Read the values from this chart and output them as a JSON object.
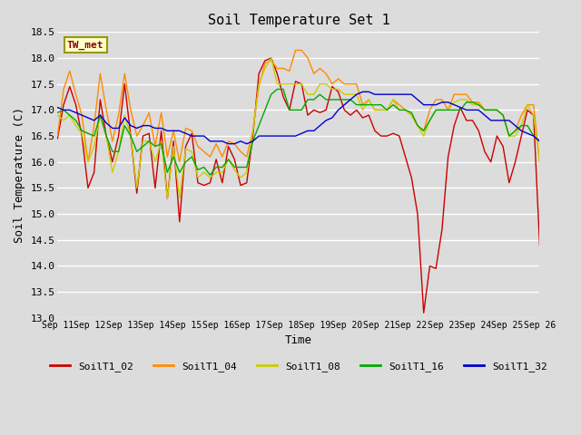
{
  "title": "Soil Temperature Set 1",
  "xlabel": "Time",
  "ylabel": "Soil Temperature (C)",
  "ylim": [
    13.0,
    18.5
  ],
  "annotation": "TW_met",
  "annotation_color": "#8B0000",
  "annotation_bg": "#FFFFCC",
  "plot_bg": "#DCDCDC",
  "grid_color": "white",
  "series_colors": {
    "SoilT1_02": "#CC0000",
    "SoilT1_04": "#FF8C00",
    "SoilT1_08": "#CCCC00",
    "SoilT1_16": "#00AA00",
    "SoilT1_32": "#0000CC"
  },
  "x_start": 11,
  "x_end": 26,
  "x_ticks": [
    11,
    12,
    13,
    14,
    15,
    16,
    17,
    18,
    19,
    20,
    21,
    22,
    23,
    24,
    25,
    26
  ],
  "x_tick_labels": [
    "Sep 11",
    "Sep 12",
    "Sep 13",
    "Sep 14",
    "Sep 15",
    "Sep 16",
    "Sep 17",
    "Sep 18",
    "Sep 19",
    "Sep 20",
    "Sep 21",
    "Sep 22",
    "Sep 23",
    "Sep 24",
    "Sep 25",
    "Sep 26"
  ],
  "y_ticks": [
    13.0,
    13.5,
    14.0,
    14.5,
    15.0,
    15.5,
    16.0,
    16.5,
    17.0,
    17.5,
    18.0,
    18.5
  ],
  "legend_entries": [
    "SoilT1_02",
    "SoilT1_04",
    "SoilT1_08",
    "SoilT1_16",
    "SoilT1_32"
  ],
  "SoilT1_02": [
    16.45,
    17.1,
    17.45,
    17.1,
    16.5,
    15.5,
    15.8,
    17.2,
    16.5,
    16.0,
    16.5,
    17.5,
    16.5,
    15.4,
    16.5,
    16.55,
    15.5,
    16.6,
    15.3,
    16.4,
    14.85,
    16.3,
    16.55,
    15.6,
    15.55,
    15.6,
    16.05,
    15.6,
    16.3,
    16.05,
    15.55,
    15.6,
    16.5,
    17.7,
    17.95,
    18.0,
    17.7,
    17.25,
    17.0,
    17.55,
    17.5,
    16.9,
    17.0,
    16.95,
    17.0,
    17.45,
    17.35,
    17.0,
    16.9,
    17.0,
    16.85,
    16.9,
    16.6,
    16.5,
    16.5,
    16.55,
    16.5,
    16.1,
    15.7,
    15.0,
    13.1,
    14.0,
    13.95,
    14.7,
    16.1,
    16.7,
    17.05,
    16.8,
    16.8,
    16.6,
    16.2,
    16.0,
    16.5,
    16.3,
    15.6,
    16.0,
    16.5,
    17.0,
    16.9,
    14.4
  ],
  "SoilT1_04": [
    16.5,
    17.4,
    17.75,
    17.3,
    16.9,
    16.0,
    16.7,
    17.7,
    17.0,
    16.4,
    16.9,
    17.7,
    17.0,
    16.5,
    16.7,
    16.95,
    16.3,
    16.95,
    16.1,
    16.6,
    16.0,
    16.65,
    16.6,
    16.3,
    16.2,
    16.1,
    16.35,
    16.1,
    16.4,
    16.35,
    16.2,
    16.1,
    16.6,
    17.45,
    17.9,
    17.95,
    17.8,
    17.8,
    17.75,
    18.15,
    18.15,
    18.0,
    17.7,
    17.8,
    17.7,
    17.5,
    17.6,
    17.5,
    17.5,
    17.5,
    17.1,
    17.2,
    17.0,
    17.0,
    17.0,
    17.2,
    17.1,
    17.0,
    16.9,
    16.7,
    16.6,
    17.0,
    17.2,
    17.2,
    17.0,
    17.3,
    17.3,
    17.3,
    17.15,
    17.15,
    17.0,
    17.0,
    17.0,
    16.9,
    16.5,
    16.6,
    16.9,
    17.1,
    17.1,
    16.0
  ],
  "SoilT1_08": [
    16.9,
    16.8,
    16.9,
    16.7,
    16.55,
    16.0,
    16.3,
    16.9,
    16.5,
    15.8,
    16.2,
    16.9,
    16.5,
    15.5,
    16.4,
    16.4,
    16.0,
    16.4,
    15.3,
    16.3,
    15.3,
    16.25,
    16.2,
    15.7,
    15.8,
    15.7,
    15.8,
    15.8,
    16.05,
    15.85,
    15.7,
    15.8,
    16.6,
    17.5,
    17.8,
    18.0,
    17.5,
    17.5,
    17.5,
    17.5,
    17.5,
    17.3,
    17.3,
    17.5,
    17.5,
    17.4,
    17.4,
    17.3,
    17.3,
    17.3,
    17.0,
    17.2,
    17.0,
    17.0,
    17.0,
    17.2,
    17.0,
    17.0,
    16.9,
    16.7,
    16.5,
    16.8,
    17.0,
    17.0,
    17.0,
    17.15,
    17.2,
    17.2,
    17.1,
    17.1,
    17.0,
    17.0,
    17.0,
    16.9,
    16.5,
    16.5,
    16.7,
    17.1,
    16.9,
    16.0
  ],
  "SoilT1_16": [
    16.95,
    17.0,
    16.9,
    16.8,
    16.6,
    16.55,
    16.5,
    16.9,
    16.5,
    16.2,
    16.2,
    16.7,
    16.5,
    16.2,
    16.3,
    16.4,
    16.3,
    16.35,
    15.8,
    16.1,
    15.8,
    16.0,
    16.1,
    15.85,
    15.9,
    15.75,
    15.9,
    15.9,
    16.05,
    15.9,
    15.9,
    15.9,
    16.4,
    16.7,
    17.0,
    17.3,
    17.4,
    17.4,
    17.0,
    17.0,
    17.0,
    17.2,
    17.2,
    17.3,
    17.2,
    17.2,
    17.2,
    17.2,
    17.2,
    17.1,
    17.1,
    17.1,
    17.1,
    17.1,
    17.0,
    17.1,
    17.0,
    17.0,
    16.95,
    16.7,
    16.6,
    16.8,
    17.0,
    17.0,
    17.0,
    17.0,
    17.0,
    17.15,
    17.15,
    17.1,
    17.0,
    17.0,
    17.0,
    16.9,
    16.5,
    16.6,
    16.7,
    16.7,
    16.5,
    16.4
  ],
  "SoilT1_32": [
    17.05,
    17.0,
    17.0,
    16.95,
    16.9,
    16.85,
    16.8,
    16.9,
    16.75,
    16.65,
    16.65,
    16.85,
    16.7,
    16.65,
    16.7,
    16.7,
    16.65,
    16.65,
    16.6,
    16.6,
    16.6,
    16.55,
    16.5,
    16.5,
    16.5,
    16.4,
    16.4,
    16.4,
    16.35,
    16.35,
    16.4,
    16.35,
    16.4,
    16.5,
    16.5,
    16.5,
    16.5,
    16.5,
    16.5,
    16.5,
    16.55,
    16.6,
    16.6,
    16.7,
    16.8,
    16.85,
    17.0,
    17.1,
    17.2,
    17.3,
    17.35,
    17.35,
    17.3,
    17.3,
    17.3,
    17.3,
    17.3,
    17.3,
    17.3,
    17.2,
    17.1,
    17.1,
    17.1,
    17.15,
    17.15,
    17.1,
    17.05,
    17.0,
    17.0,
    17.0,
    16.9,
    16.8,
    16.8,
    16.8,
    16.8,
    16.7,
    16.6,
    16.55,
    16.5,
    16.4
  ]
}
